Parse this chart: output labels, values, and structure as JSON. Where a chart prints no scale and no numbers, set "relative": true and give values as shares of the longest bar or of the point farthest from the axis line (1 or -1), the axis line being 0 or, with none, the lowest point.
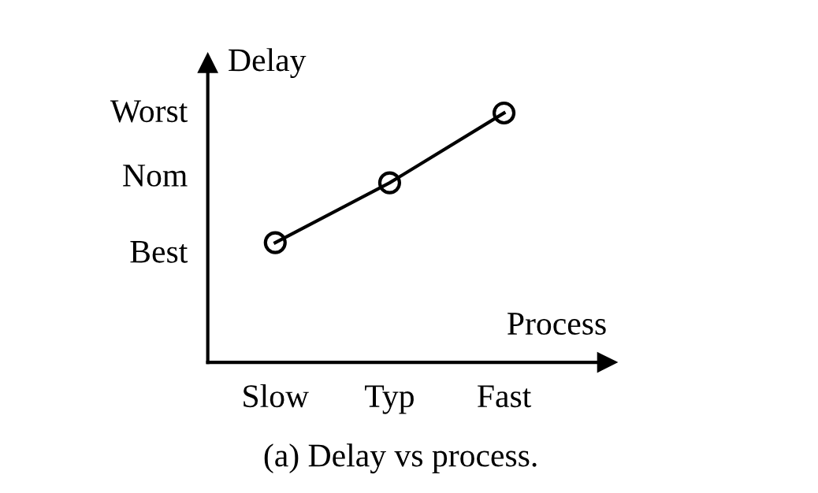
{
  "chart_data": {
    "type": "line",
    "relative": true,
    "xlabel": "Process",
    "ylabel": "Delay",
    "annotations": [
      "(a) Delay vs process.",
      "Best",
      "Nom",
      "Worst"
    ],
    "categories": [
      "Slow",
      "Typ",
      "Fast"
    ],
    "series": [
      {
        "color": "#000000",
        "values": [
          0.48,
          0.72,
          1
        ]
      }
    ],
    "marker": "circle",
    "line_style": "solid",
    "grid": false,
    "legend": false
  }
}
